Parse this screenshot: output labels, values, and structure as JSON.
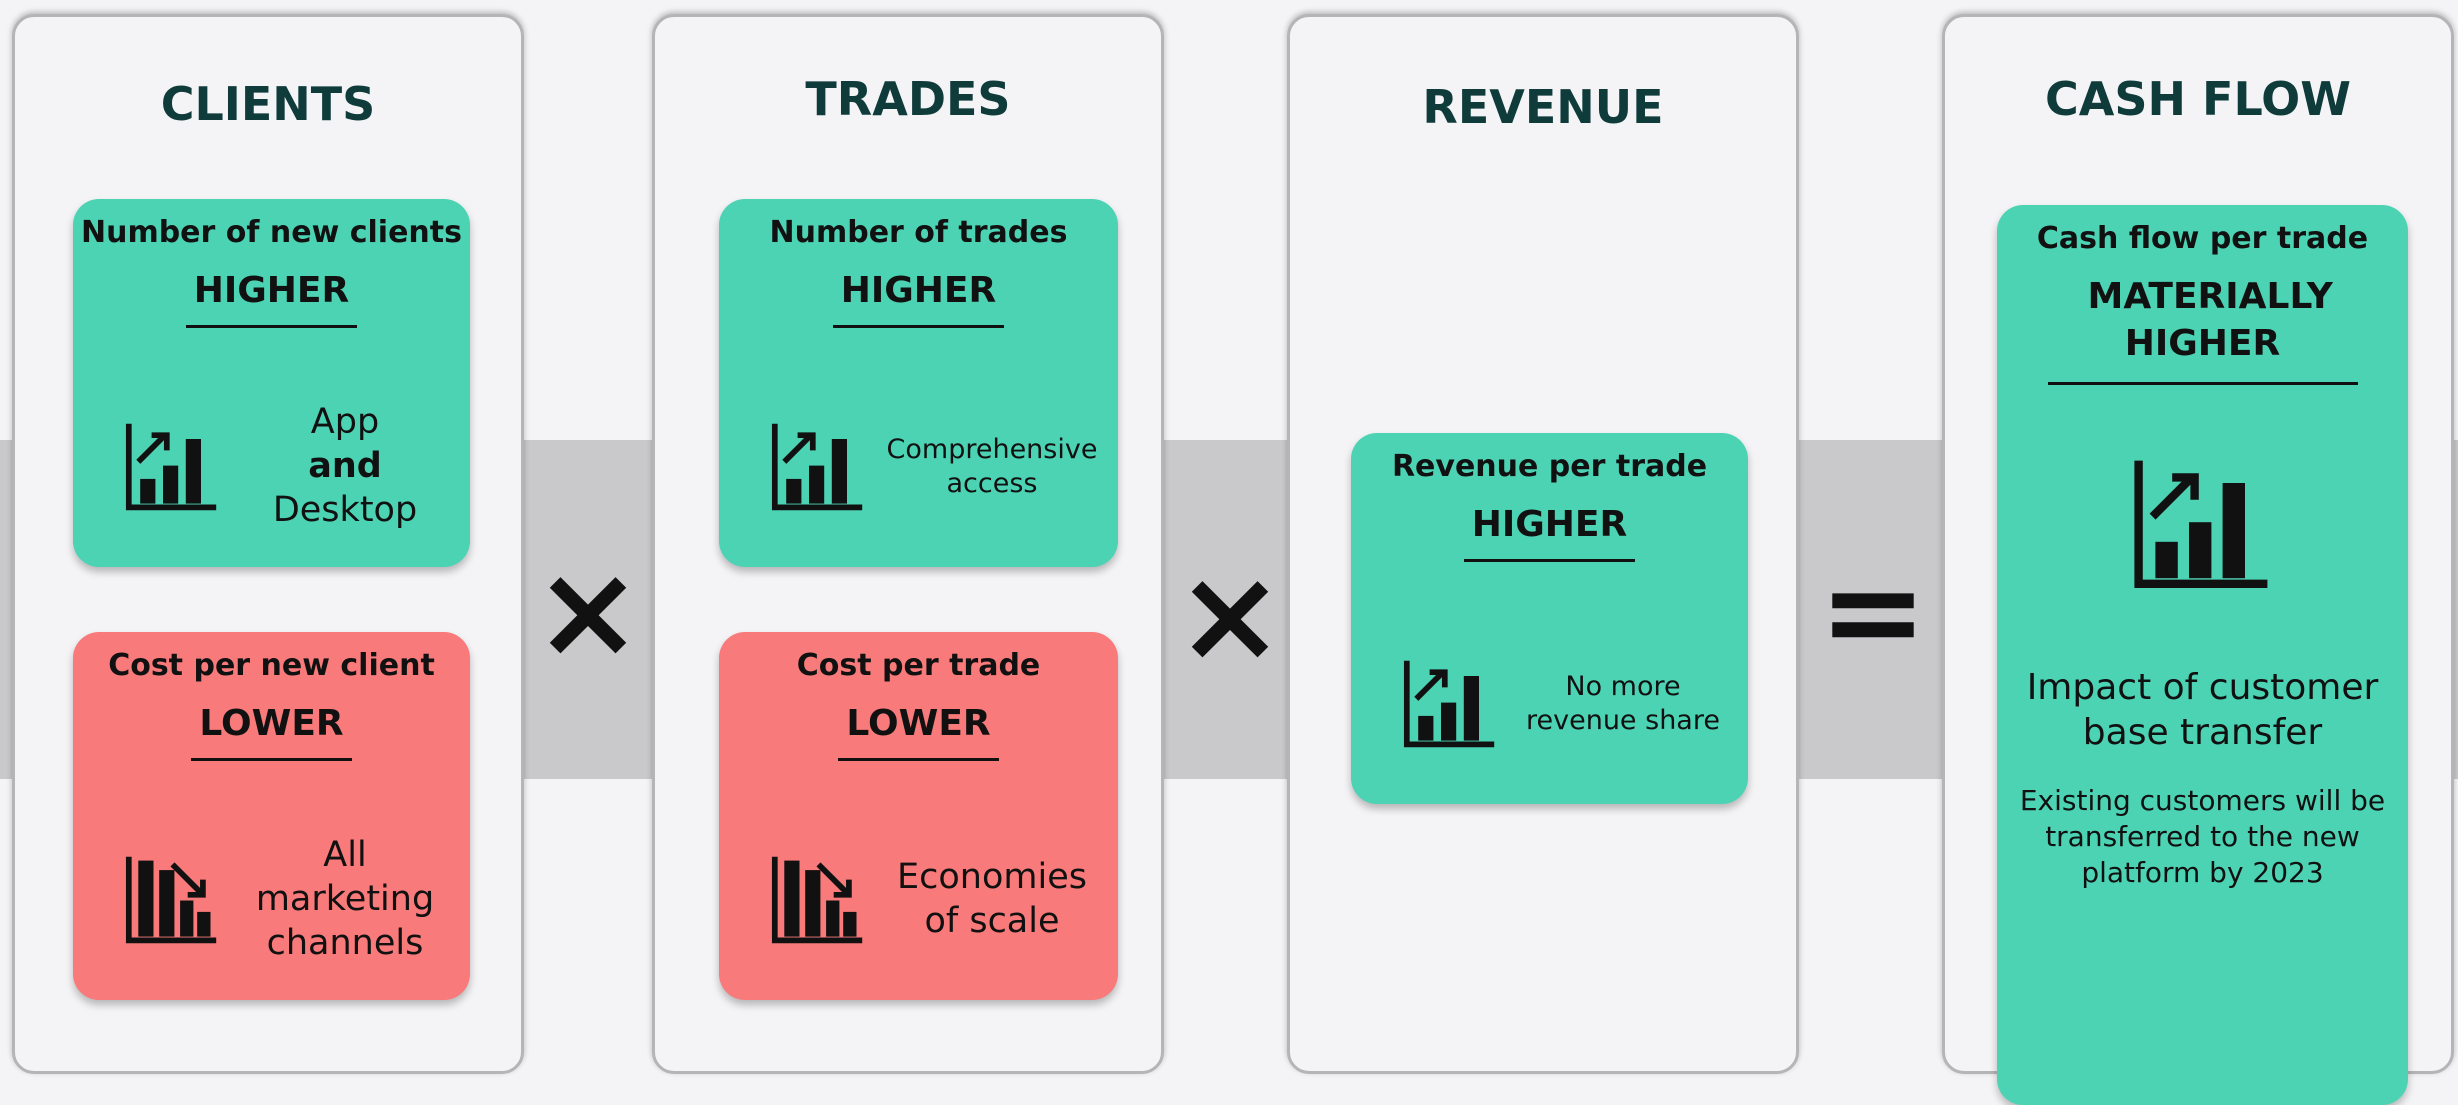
{
  "columns": [
    {
      "title": "CLIENTS",
      "cards": [
        {
          "tone": "up",
          "label": "Number of new clients",
          "verdict": "HIGHER",
          "note_lines": [
            "App",
            "and",
            "Desktop"
          ]
        },
        {
          "tone": "down",
          "label": "Cost per new client",
          "verdict": "LOWER",
          "note_lines": [
            "All",
            "marketing",
            "channels"
          ]
        }
      ]
    },
    {
      "title": "TRADES",
      "cards": [
        {
          "tone": "up",
          "label": "Number of trades",
          "verdict": "HIGHER",
          "note_lines": [
            "Comprehensive",
            "access"
          ]
        },
        {
          "tone": "down",
          "label": "Cost per trade",
          "verdict": "LOWER",
          "note_lines": [
            "Economies",
            "of scale"
          ]
        }
      ]
    },
    {
      "title": "REVENUE",
      "cards": [
        {
          "tone": "up",
          "label": "Revenue per trade",
          "verdict": "HIGHER",
          "note_lines": [
            "No more",
            "revenue share"
          ]
        }
      ]
    },
    {
      "title": "CASH FLOW",
      "cards": [
        {
          "tone": "up",
          "label": "Cash flow per trade",
          "verdict": "MATERIALLY HIGHER",
          "heading": "Impact of customer base transfer",
          "detail": "Existing customers will be transferred to the new platform by 2023"
        }
      ]
    }
  ],
  "operators": [
    "×",
    "×",
    "="
  ]
}
